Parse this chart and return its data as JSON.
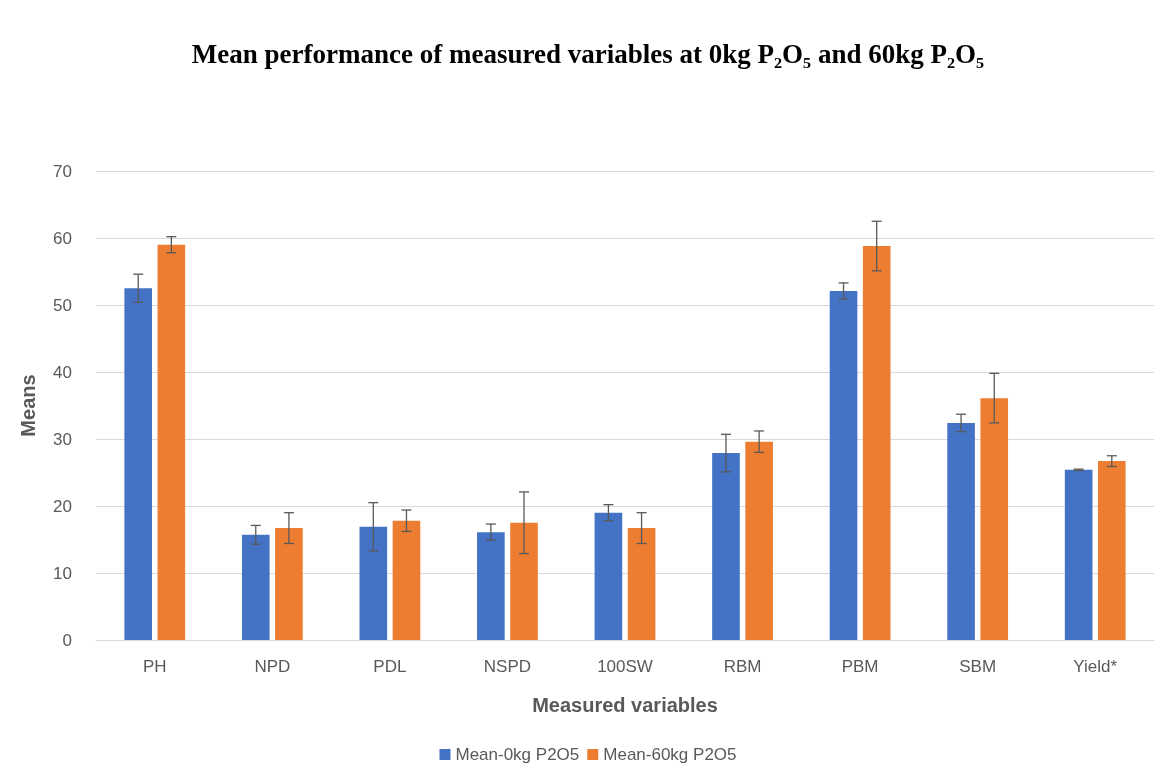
{
  "chart_data": {
    "type": "bar",
    "title": "Mean performance of measured variables at 0kg P₂O₅ and 60kg P₂O₅",
    "xlabel": "Measured variables",
    "ylabel": "Means",
    "categories": [
      "PH",
      "NPD",
      "PDL",
      "NSPD",
      "100SW",
      "RBM",
      "PBM",
      "SBM",
      "Yield*"
    ],
    "series": [
      {
        "name": "Mean-0kg P2O5",
        "color": "#4472c4",
        "values": [
          52.5,
          15.7,
          16.9,
          16.1,
          19.0,
          27.9,
          52.1,
          32.4,
          25.4
        ],
        "errors": [
          2.1,
          1.4,
          3.6,
          1.2,
          1.2,
          2.8,
          1.2,
          1.3,
          0.1
        ]
      },
      {
        "name": "Mean-60kg P2O5",
        "color": "#ed7d31",
        "values": [
          59.0,
          16.7,
          17.8,
          17.5,
          16.7,
          29.6,
          58.8,
          36.1,
          26.7
        ],
        "errors": [
          1.2,
          2.3,
          1.6,
          4.6,
          2.3,
          1.6,
          3.7,
          3.7,
          0.8
        ]
      }
    ],
    "ylim": [
      0,
      70
    ],
    "yticks": [
      0,
      10,
      20,
      30,
      40,
      50,
      60,
      70
    ],
    "grid": "y",
    "legend": "bottom"
  }
}
